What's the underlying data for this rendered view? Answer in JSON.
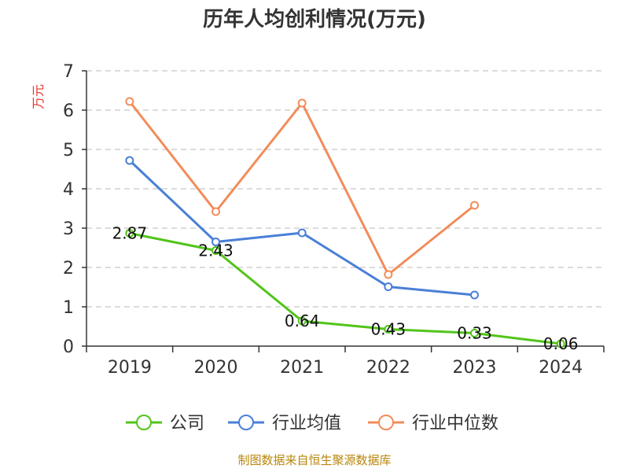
{
  "chart_data": {
    "type": "line",
    "title": "历年人均创利情况(万元)",
    "ylabel": "万元",
    "xlabel": "",
    "categories": [
      "2019",
      "2020",
      "2021",
      "2022",
      "2023",
      "2024"
    ],
    "ylim": [
      0,
      7
    ],
    "yticks": [
      0,
      1,
      2,
      3,
      4,
      5,
      6,
      7
    ],
    "grid": true,
    "legend_position": "bottom",
    "series": [
      {
        "name": "公司",
        "color": "#52c41a",
        "values": [
          2.87,
          2.43,
          0.64,
          0.43,
          0.33,
          0.06
        ],
        "labels": [
          "2.87",
          "2.43",
          "0.64",
          "0.43",
          "0.33",
          "0.06"
        ]
      },
      {
        "name": "行业均值",
        "color": "#4a7fd6",
        "values": [
          4.72,
          2.65,
          2.88,
          1.51,
          1.3,
          null
        ]
      },
      {
        "name": "行业中位数",
        "color": "#f28c5a",
        "values": [
          6.22,
          3.42,
          6.18,
          1.82,
          3.58,
          null
        ]
      }
    ]
  },
  "footer": {
    "source": "制图数据来自恒生聚源数据库"
  }
}
